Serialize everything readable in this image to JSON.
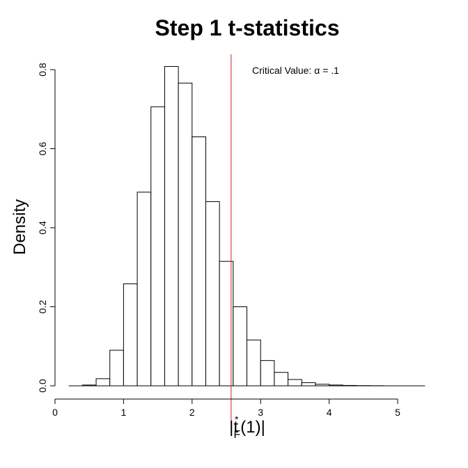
{
  "chart_data": {
    "type": "bar",
    "title": "Step 1 t-statistics",
    "xlabel": "|t*F(1)|",
    "xlabel_parts": {
      "prefix": "|t",
      "sup": "*",
      "sub": "F",
      "suffix": "(1)|"
    },
    "ylabel": "Density",
    "xlim": [
      0,
      5.3
    ],
    "ylim": [
      0,
      0.8
    ],
    "x_ticks": [
      0,
      1,
      2,
      3,
      4,
      5
    ],
    "y_ticks": [
      "0.0",
      "0.2",
      "0.4",
      "0.6",
      "0.8"
    ],
    "grid": false,
    "bin_width": 0.2,
    "bins": [
      {
        "x0": 0.2,
        "x1": 0.4,
        "value": 0.0
      },
      {
        "x0": 0.4,
        "x1": 0.6,
        "value": 0.002
      },
      {
        "x0": 0.6,
        "x1": 0.8,
        "value": 0.018
      },
      {
        "x0": 0.8,
        "x1": 1.0,
        "value": 0.09
      },
      {
        "x0": 1.0,
        "x1": 1.2,
        "value": 0.258
      },
      {
        "x0": 1.2,
        "x1": 1.4,
        "value": 0.49
      },
      {
        "x0": 1.4,
        "x1": 1.6,
        "value": 0.706
      },
      {
        "x0": 1.6,
        "x1": 1.8,
        "value": 0.808
      },
      {
        "x0": 1.8,
        "x1": 2.0,
        "value": 0.766
      },
      {
        "x0": 2.0,
        "x1": 2.2,
        "value": 0.63
      },
      {
        "x0": 2.2,
        "x1": 2.4,
        "value": 0.466
      },
      {
        "x0": 2.4,
        "x1": 2.6,
        "value": 0.315
      },
      {
        "x0": 2.6,
        "x1": 2.8,
        "value": 0.2
      },
      {
        "x0": 2.8,
        "x1": 3.0,
        "value": 0.116
      },
      {
        "x0": 3.0,
        "x1": 3.2,
        "value": 0.064
      },
      {
        "x0": 3.2,
        "x1": 3.4,
        "value": 0.034
      },
      {
        "x0": 3.4,
        "x1": 3.6,
        "value": 0.016
      },
      {
        "x0": 3.6,
        "x1": 3.8,
        "value": 0.008
      },
      {
        "x0": 3.8,
        "x1": 4.0,
        "value": 0.004
      },
      {
        "x0": 4.0,
        "x1": 4.2,
        "value": 0.002
      },
      {
        "x0": 4.2,
        "x1": 4.4,
        "value": 0.001
      },
      {
        "x0": 4.4,
        "x1": 4.6,
        "value": 0.0005
      },
      {
        "x0": 4.6,
        "x1": 4.8,
        "value": 0.0003
      },
      {
        "x0": 4.8,
        "x1": 5.0,
        "value": 0.0
      },
      {
        "x0": 5.0,
        "x1": 5.2,
        "value": 0.0
      },
      {
        "x0": 5.2,
        "x1": 5.4,
        "value": 0.0
      }
    ],
    "critical_value": {
      "x": 2.57,
      "color": "#cc2222",
      "label": "Critical Value: α = .1"
    }
  }
}
